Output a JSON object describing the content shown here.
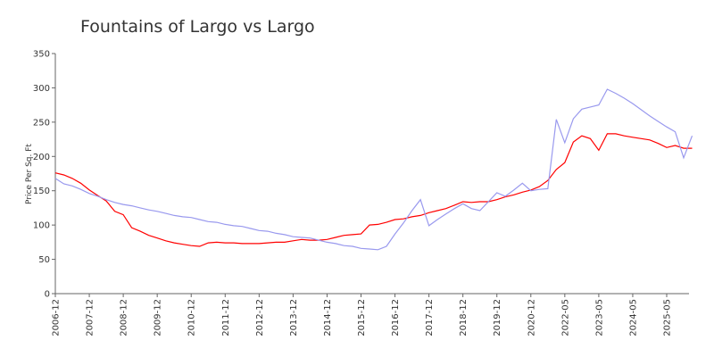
{
  "chart_data": {
    "type": "line",
    "title": "Fountains of Largo vs Largo",
    "y_label": "Price Per Sq. Ft",
    "categories": [
      "2006-12",
      null,
      null,
      null,
      "2007-12",
      null,
      null,
      null,
      "2008-12",
      null,
      null,
      null,
      "2009-12",
      null,
      null,
      null,
      "2010-12",
      null,
      null,
      null,
      "2011-12",
      null,
      null,
      null,
      "2012-12",
      null,
      null,
      null,
      "2013-12",
      null,
      null,
      null,
      "2014-12",
      null,
      null,
      null,
      "2015-12",
      null,
      null,
      null,
      "2016-12",
      null,
      null,
      null,
      "2017-12",
      null,
      null,
      null,
      "2018-12",
      null,
      null,
      null,
      "2019-12",
      null,
      null,
      null,
      "2020-12",
      null,
      null,
      null,
      "2022-05",
      null,
      null,
      null,
      "2023-05",
      null,
      null,
      null,
      "2024-05",
      null,
      null,
      null,
      "2025-05",
      null,
      null,
      null
    ],
    "series": [
      {
        "color": "#ff0000",
        "values": [
          176,
          173,
          168,
          161,
          151,
          143,
          135,
          120,
          115,
          96,
          91,
          85,
          81,
          77,
          74,
          72,
          70,
          69,
          74,
          75,
          74,
          74,
          73,
          73,
          73,
          74,
          75,
          75,
          77,
          79,
          78,
          78,
          79,
          82,
          85,
          86,
          87,
          100,
          101,
          104,
          108,
          109,
          112,
          114,
          118,
          121,
          124,
          129,
          134,
          133,
          134,
          134,
          137,
          141,
          144,
          148,
          151,
          156,
          165,
          181,
          191,
          221,
          230,
          226,
          209,
          233,
          233,
          230,
          228,
          226,
          224,
          219,
          213,
          216,
          212,
          212
        ]
      },
      {
        "color": "#9999ee",
        "values": [
          168,
          160,
          157,
          152,
          146,
          142,
          137,
          133,
          130,
          128,
          125,
          122,
          120,
          117,
          114,
          112,
          111,
          108,
          105,
          104,
          101,
          99,
          98,
          95,
          92,
          91,
          88,
          86,
          83,
          82,
          81,
          78,
          75,
          73,
          70,
          69,
          66,
          65,
          64,
          69,
          87,
          103,
          121,
          137,
          99,
          108,
          116,
          124,
          131,
          124,
          121,
          134,
          147,
          142,
          151,
          161,
          150,
          152,
          153,
          254,
          220,
          255,
          269,
          272,
          275,
          298,
          292,
          285,
          277,
          268,
          259,
          251,
          243,
          236,
          198,
          230
        ]
      }
    ],
    "ylim": [
      0,
      350
    ],
    "yticks": [
      0,
      50,
      100,
      150,
      200,
      250,
      300,
      350
    ],
    "grid": false
  }
}
